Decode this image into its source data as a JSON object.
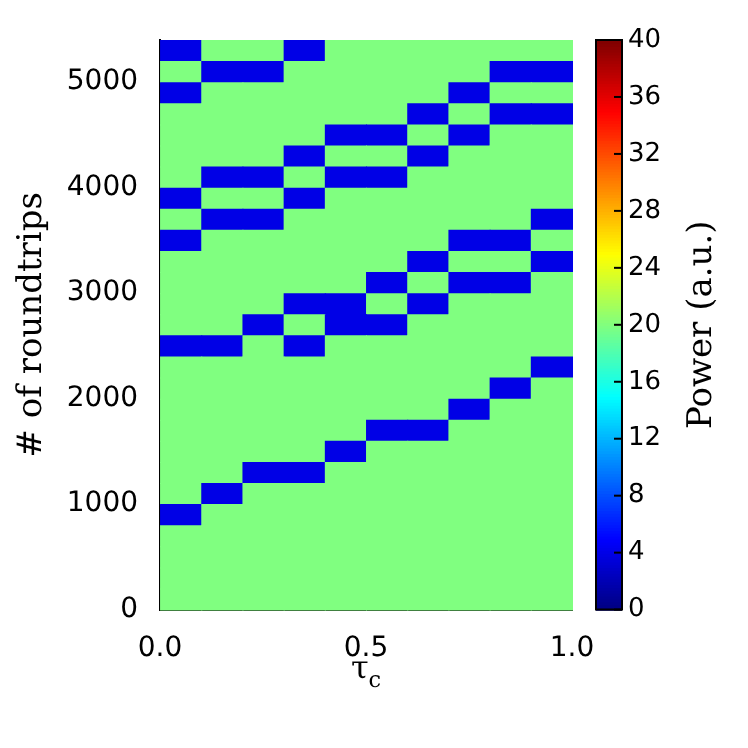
{
  "chart_data": {
    "type": "heatmap",
    "xlabel": "τ$_{c}$",
    "ylabel": "# of roundtrips",
    "clabel": "Power (a.u.)",
    "xlim": [
      0,
      1
    ],
    "xticks": [
      {
        "value": 0,
        "label": "0.0"
      },
      {
        "value": 0.5,
        "label": "0.5"
      },
      {
        "value": 1,
        "label": "1.0"
      }
    ],
    "ylim": [
      0,
      5400
    ],
    "yticks": [
      0,
      1000,
      2000,
      3000,
      4000,
      5000
    ],
    "clim": [
      0,
      40
    ],
    "cticks": [
      0,
      4,
      8,
      12,
      16,
      20,
      24,
      28,
      32,
      36,
      40
    ],
    "cells": [
      [
        4,
        20,
        20,
        4,
        20,
        20,
        20,
        20,
        20,
        20
      ],
      [
        20,
        4,
        4,
        20,
        20,
        20,
        20,
        20,
        4,
        4
      ],
      [
        4,
        20,
        20,
        20,
        20,
        20,
        20,
        4,
        20,
        20
      ],
      [
        20,
        20,
        20,
        20,
        20,
        20,
        4,
        20,
        4,
        4
      ],
      [
        20,
        20,
        20,
        20,
        4,
        4,
        20,
        4,
        20,
        20
      ],
      [
        20,
        20,
        20,
        4,
        20,
        20,
        4,
        20,
        20,
        20
      ],
      [
        20,
        4,
        4,
        20,
        4,
        4,
        20,
        20,
        20,
        20
      ],
      [
        4,
        20,
        20,
        4,
        20,
        20,
        20,
        20,
        20,
        20
      ],
      [
        20,
        4,
        4,
        20,
        20,
        20,
        20,
        20,
        20,
        4
      ],
      [
        4,
        20,
        20,
        20,
        20,
        20,
        20,
        4,
        4,
        20
      ],
      [
        20,
        20,
        20,
        20,
        20,
        20,
        4,
        20,
        20,
        4
      ],
      [
        20,
        20,
        20,
        20,
        20,
        4,
        20,
        4,
        4,
        20
      ],
      [
        20,
        20,
        20,
        4,
        4,
        20,
        4,
        20,
        20,
        20
      ],
      [
        20,
        20,
        4,
        20,
        4,
        4,
        20,
        20,
        20,
        20
      ],
      [
        4,
        4,
        20,
        4,
        20,
        20,
        20,
        20,
        20,
        20
      ],
      [
        20,
        20,
        20,
        20,
        20,
        20,
        20,
        20,
        20,
        4
      ],
      [
        20,
        20,
        20,
        20,
        20,
        20,
        20,
        20,
        4,
        20
      ],
      [
        20,
        20,
        20,
        20,
        20,
        20,
        20,
        4,
        20,
        20
      ],
      [
        20,
        20,
        20,
        20,
        20,
        4,
        4,
        20,
        20,
        20
      ],
      [
        20,
        20,
        20,
        20,
        4,
        20,
        20,
        20,
        20,
        20
      ],
      [
        20,
        20,
        4,
        4,
        20,
        20,
        20,
        20,
        20,
        20
      ],
      [
        20,
        4,
        20,
        20,
        20,
        20,
        20,
        20,
        20,
        20
      ],
      [
        4,
        20,
        20,
        20,
        20,
        20,
        20,
        20,
        20,
        20
      ],
      [
        20,
        20,
        20,
        20,
        20,
        20,
        20,
        20,
        20,
        20
      ],
      [
        20,
        20,
        20,
        20,
        20,
        20,
        20,
        20,
        20,
        20
      ],
      [
        20,
        20,
        20,
        20,
        20,
        20,
        20,
        20,
        20,
        20
      ],
      [
        20,
        20,
        20,
        20,
        20,
        20,
        20,
        20,
        20,
        20
      ]
    ]
  }
}
